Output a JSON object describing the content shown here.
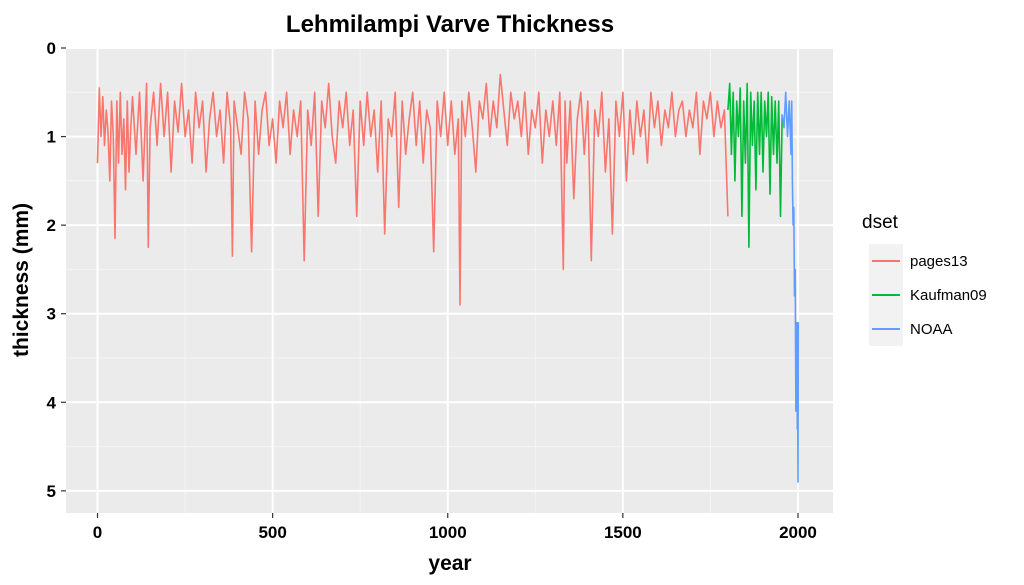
{
  "chart_data": {
    "type": "line",
    "title": "Lehmilampi Varve Thickness",
    "xlabel": "year",
    "ylabel": "thickness (mm)",
    "xlim": [
      -90,
      2100
    ],
    "ylim": [
      0,
      5.25
    ],
    "y_reversed": true,
    "x_ticks": [
      0,
      500,
      1000,
      1500,
      2000
    ],
    "x_tick_labels": [
      "0",
      "500",
      "1000",
      "1500",
      "2000"
    ],
    "y_ticks": [
      0,
      1,
      2,
      3,
      4,
      5
    ],
    "y_tick_labels": [
      "0",
      "1",
      "2",
      "3",
      "4",
      "5"
    ],
    "grid": true,
    "legend": {
      "title": "dset",
      "position": "right",
      "entries": [
        {
          "label": "pages13",
          "color": "#F8766D"
        },
        {
          "label": "Kaufman09",
          "color": "#00BA38"
        },
        {
          "label": "NOAA",
          "color": "#619CFF"
        }
      ]
    },
    "series": [
      {
        "name": "pages13",
        "color": "#F8766D",
        "x": [
          0,
          5,
          10,
          15,
          20,
          25,
          30,
          35,
          40,
          45,
          50,
          55,
          60,
          65,
          70,
          75,
          80,
          85,
          90,
          95,
          100,
          110,
          120,
          130,
          140,
          145,
          150,
          160,
          170,
          180,
          190,
          200,
          210,
          220,
          230,
          240,
          250,
          260,
          270,
          280,
          290,
          300,
          310,
          320,
          330,
          340,
          350,
          360,
          370,
          380,
          385,
          390,
          400,
          410,
          420,
          430,
          440,
          450,
          460,
          470,
          480,
          490,
          500,
          510,
          520,
          530,
          540,
          550,
          560,
          570,
          580,
          590,
          600,
          610,
          620,
          630,
          640,
          650,
          660,
          670,
          680,
          690,
          700,
          710,
          720,
          730,
          740,
          750,
          760,
          770,
          780,
          790,
          800,
          810,
          820,
          830,
          840,
          850,
          860,
          870,
          880,
          890,
          900,
          910,
          920,
          930,
          940,
          950,
          960,
          970,
          980,
          990,
          1000,
          1010,
          1020,
          1030,
          1035,
          1040,
          1050,
          1060,
          1070,
          1080,
          1090,
          1100,
          1110,
          1120,
          1130,
          1140,
          1150,
          1160,
          1170,
          1180,
          1190,
          1200,
          1210,
          1220,
          1230,
          1240,
          1250,
          1260,
          1270,
          1280,
          1290,
          1300,
          1310,
          1320,
          1330,
          1335,
          1340,
          1350,
          1360,
          1370,
          1380,
          1390,
          1400,
          1410,
          1420,
          1430,
          1440,
          1450,
          1460,
          1470,
          1480,
          1490,
          1500,
          1510,
          1520,
          1530,
          1540,
          1550,
          1560,
          1570,
          1580,
          1590,
          1600,
          1610,
          1620,
          1630,
          1640,
          1650,
          1660,
          1670,
          1680,
          1690,
          1700,
          1710,
          1720,
          1730,
          1740,
          1750,
          1760,
          1770,
          1780,
          1790,
          1800
        ],
        "y": [
          1.3,
          0.45,
          1.0,
          0.55,
          1.1,
          0.7,
          0.95,
          1.5,
          0.6,
          1.0,
          2.15,
          0.6,
          1.3,
          0.5,
          1.2,
          0.8,
          1.6,
          0.6,
          1.4,
          0.9,
          0.55,
          1.2,
          0.5,
          1.5,
          0.4,
          2.25,
          0.9,
          0.5,
          1.1,
          0.4,
          1.0,
          0.5,
          1.4,
          0.6,
          0.95,
          0.4,
          1.0,
          0.7,
          1.3,
          0.5,
          0.9,
          0.6,
          1.4,
          0.8,
          0.5,
          1.0,
          0.7,
          1.3,
          0.5,
          0.9,
          2.35,
          0.6,
          0.9,
          1.2,
          0.5,
          0.8,
          2.3,
          0.6,
          1.2,
          0.7,
          0.5,
          1.1,
          0.8,
          1.3,
          0.6,
          0.9,
          0.5,
          1.2,
          0.7,
          1.0,
          0.6,
          2.4,
          0.7,
          1.1,
          0.5,
          1.9,
          0.6,
          0.9,
          0.4,
          1.0,
          1.3,
          0.6,
          0.9,
          0.5,
          1.1,
          0.7,
          1.9,
          0.6,
          1.1,
          0.5,
          1.0,
          0.7,
          1.4,
          0.6,
          2.1,
          0.8,
          1.0,
          0.5,
          1.8,
          0.6,
          1.2,
          0.8,
          0.5,
          1.1,
          0.6,
          1.3,
          0.7,
          0.9,
          2.3,
          0.6,
          1.0,
          0.5,
          1.1,
          0.6,
          1.2,
          0.8,
          2.9,
          0.6,
          1.0,
          0.5,
          0.9,
          1.4,
          0.6,
          0.8,
          0.4,
          1.0,
          0.6,
          0.9,
          0.3,
          0.7,
          1.1,
          0.5,
          0.8,
          0.6,
          1.0,
          0.5,
          1.2,
          0.7,
          0.9,
          0.5,
          1.3,
          0.7,
          1.0,
          0.6,
          1.1,
          0.5,
          2.5,
          0.6,
          1.3,
          0.6,
          1.7,
          0.8,
          0.5,
          1.2,
          0.6,
          2.4,
          0.7,
          1.0,
          0.5,
          1.4,
          0.8,
          2.1,
          0.6,
          1.0,
          0.5,
          1.5,
          0.7,
          1.2,
          0.6,
          1.0,
          0.7,
          1.3,
          0.5,
          0.9,
          0.6,
          1.1,
          0.7,
          0.9,
          0.5,
          1.0,
          0.7,
          0.6,
          1.0,
          0.7,
          0.9,
          0.5,
          1.2,
          0.6,
          0.8,
          0.5,
          1.0,
          0.6,
          0.9,
          0.7,
          1.9
        ]
      },
      {
        "name": "Kaufman09",
        "color": "#00BA38",
        "x": [
          1800,
          1805,
          1810,
          1815,
          1820,
          1825,
          1830,
          1835,
          1840,
          1845,
          1850,
          1855,
          1860,
          1865,
          1870,
          1875,
          1880,
          1885,
          1890,
          1895,
          1900,
          1905,
          1910,
          1915,
          1920,
          1925,
          1930,
          1935,
          1940,
          1945,
          1950,
          1955
        ],
        "y": [
          0.7,
          0.4,
          1.2,
          0.5,
          1.5,
          0.6,
          1.0,
          0.45,
          1.9,
          0.6,
          1.3,
          0.4,
          2.25,
          0.5,
          1.1,
          0.6,
          1.6,
          0.5,
          1.2,
          0.5,
          1.4,
          0.6,
          1.0,
          0.5,
          1.65,
          0.55,
          1.2,
          0.6,
          1.3,
          0.6,
          1.9,
          0.75
        ]
      },
      {
        "name": "NOAA",
        "color": "#619CFF",
        "x": [
          1955,
          1960,
          1965,
          1970,
          1975,
          1980,
          1982,
          1984,
          1986,
          1988,
          1990,
          1992,
          1994,
          1995,
          1996,
          1997,
          1998,
          1999,
          2000,
          2001,
          2002
        ],
        "y": [
          0.75,
          0.9,
          0.5,
          1.0,
          0.6,
          1.2,
          0.6,
          1.5,
          2.0,
          1.8,
          2.8,
          2.5,
          4.1,
          3.3,
          4.0,
          3.1,
          4.3,
          3.5,
          4.9,
          3.1,
          3.1
        ]
      }
    ]
  }
}
